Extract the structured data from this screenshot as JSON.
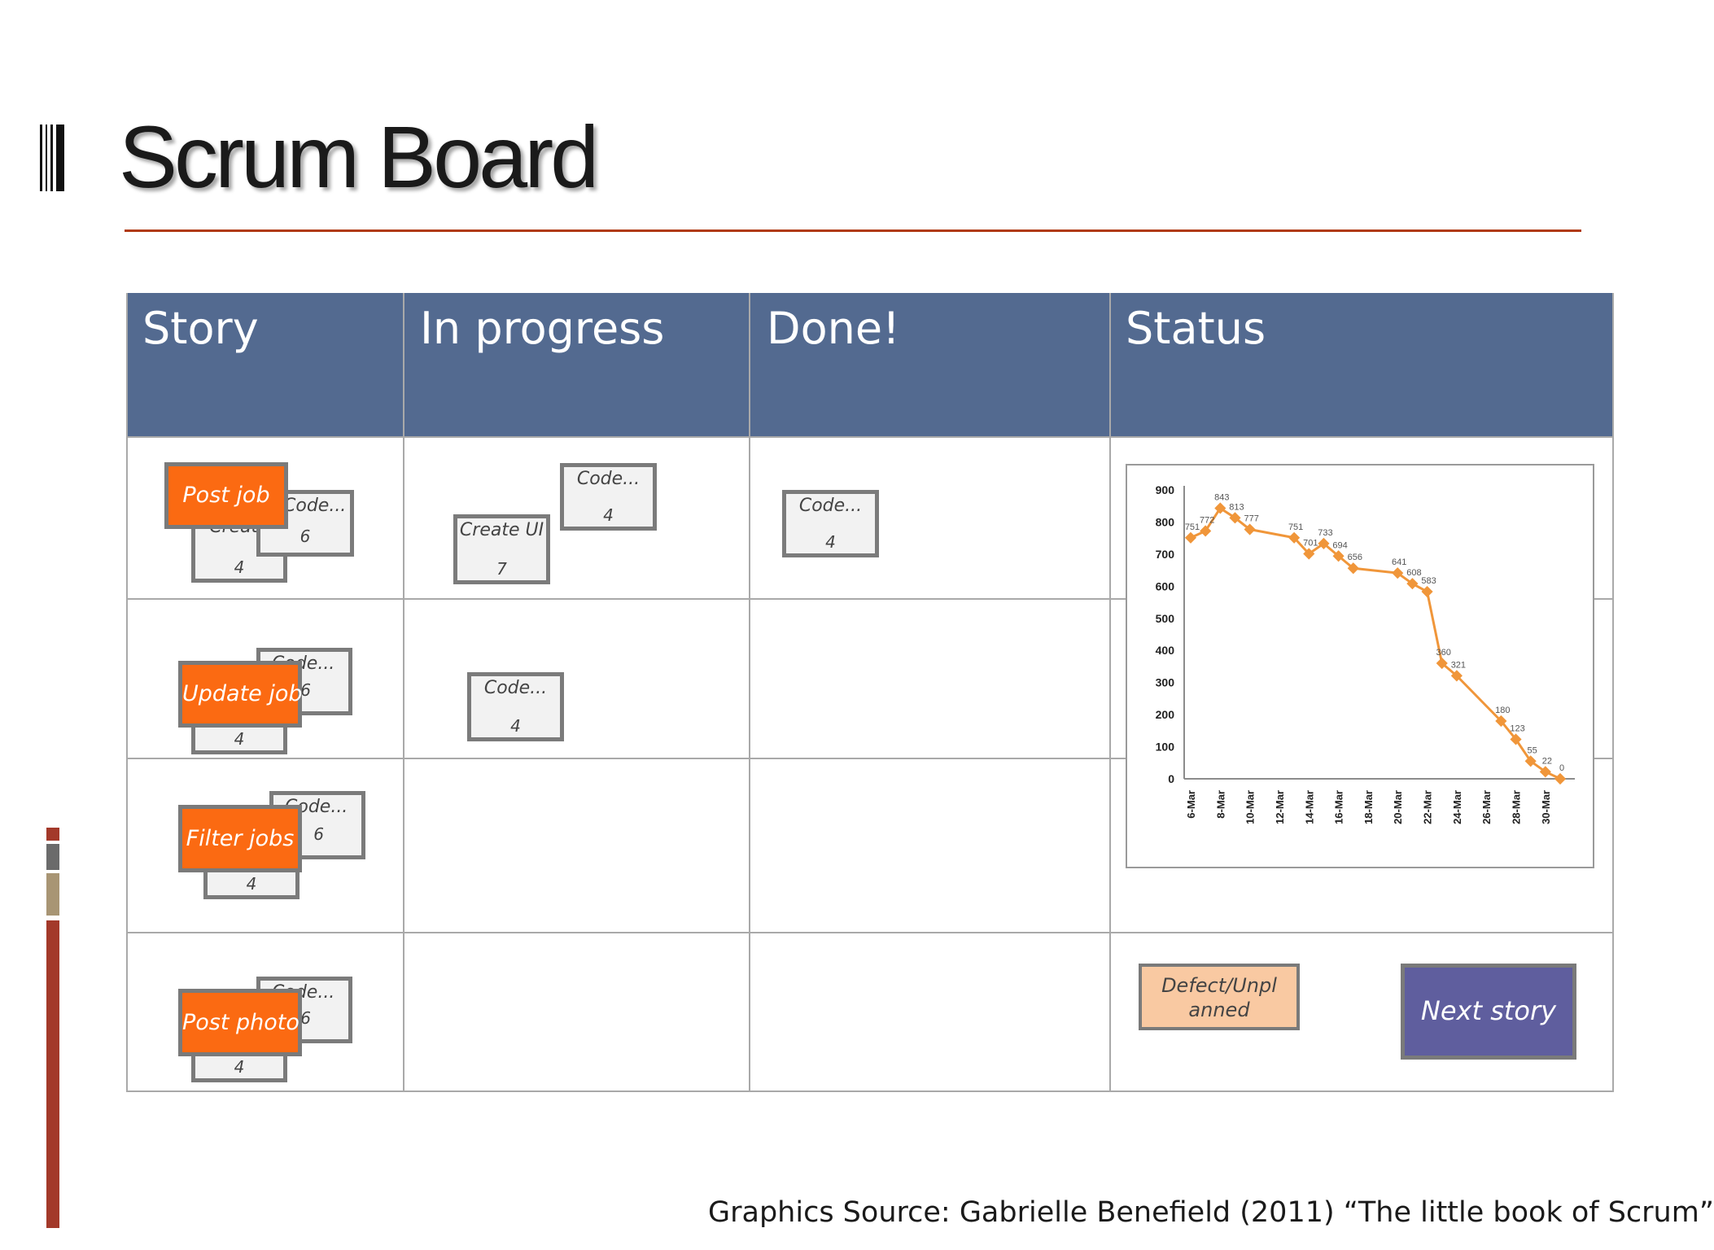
{
  "slide": {
    "title": "Scrum Board",
    "source": "Graphics Source: Gabrielle Benefield (2011) “The little book of Scrum”"
  },
  "board": {
    "columns": [
      "Story",
      "In progress",
      "Done!",
      "Status"
    ],
    "rows": [
      {
        "story": "Post job",
        "story_tasks": [
          {
            "label": "Create",
            "points": "4"
          },
          {
            "label": "Code...",
            "points": "6"
          }
        ],
        "in_progress": [
          {
            "label": "Create UI",
            "points": "7"
          },
          {
            "label": "Code...",
            "points": "4"
          }
        ],
        "done": [
          {
            "label": "Code...",
            "points": "4"
          }
        ]
      },
      {
        "story": "Update job",
        "story_tasks": [
          {
            "label": "",
            "points": "4"
          },
          {
            "label": "Code...",
            "points": "6"
          }
        ],
        "in_progress": [
          {
            "label": "Code...",
            "points": "4"
          }
        ],
        "done": []
      },
      {
        "story": "Filter jobs",
        "story_tasks": [
          {
            "label": "",
            "points": "4"
          },
          {
            "label": "Code...",
            "points": "6"
          }
        ],
        "in_progress": [],
        "done": []
      },
      {
        "story": "Post photo",
        "story_tasks": [
          {
            "label": "",
            "points": "4"
          },
          {
            "label": "Code...",
            "points": "6"
          }
        ],
        "in_progress": [],
        "done": []
      }
    ],
    "status_cards": {
      "defect": "Defect/Unpl anned",
      "next": "Next story"
    }
  },
  "colors": {
    "header": "#536a90",
    "story_card": "#fb6a12",
    "line": "#f0963a",
    "title_rule": "#b03a12",
    "next_story": "#5f5e9e",
    "defect": "#f9c9a2"
  },
  "chart_data": {
    "type": "line",
    "ylim": [
      0,
      900
    ],
    "yticks": [
      0,
      100,
      200,
      300,
      400,
      500,
      600,
      700,
      800,
      900
    ],
    "xtick_labels": [
      "6-Mar",
      "8-Mar",
      "10-Mar",
      "12-Mar",
      "14-Mar",
      "16-Mar",
      "18-Mar",
      "20-Mar",
      "22-Mar",
      "24-Mar",
      "26-Mar",
      "28-Mar",
      "30-Mar"
    ],
    "x": [
      "6-Mar",
      "7-Mar",
      "8-Mar",
      "9-Mar",
      "10-Mar",
      "13-Mar",
      "14-Mar",
      "15-Mar",
      "16-Mar",
      "17-Mar",
      "20-Mar",
      "21-Mar",
      "22-Mar",
      "23-Mar",
      "24-Mar",
      "27-Mar",
      "28-Mar",
      "29-Mar",
      "30-Mar",
      "31-Mar"
    ],
    "values": [
      751,
      772,
      843,
      813,
      777,
      751,
      701,
      733,
      694,
      656,
      641,
      608,
      583,
      360,
      321,
      180,
      123,
      55,
      22,
      0
    ],
    "data_labels": [
      "751",
      "772",
      "843",
      "813",
      "777",
      "751",
      "701",
      "733",
      "694",
      "656",
      "641",
      "608",
      "583",
      "360",
      "321",
      "180",
      "123",
      "55",
      "22",
      "0"
    ],
    "grid": false,
    "legend": "none"
  }
}
